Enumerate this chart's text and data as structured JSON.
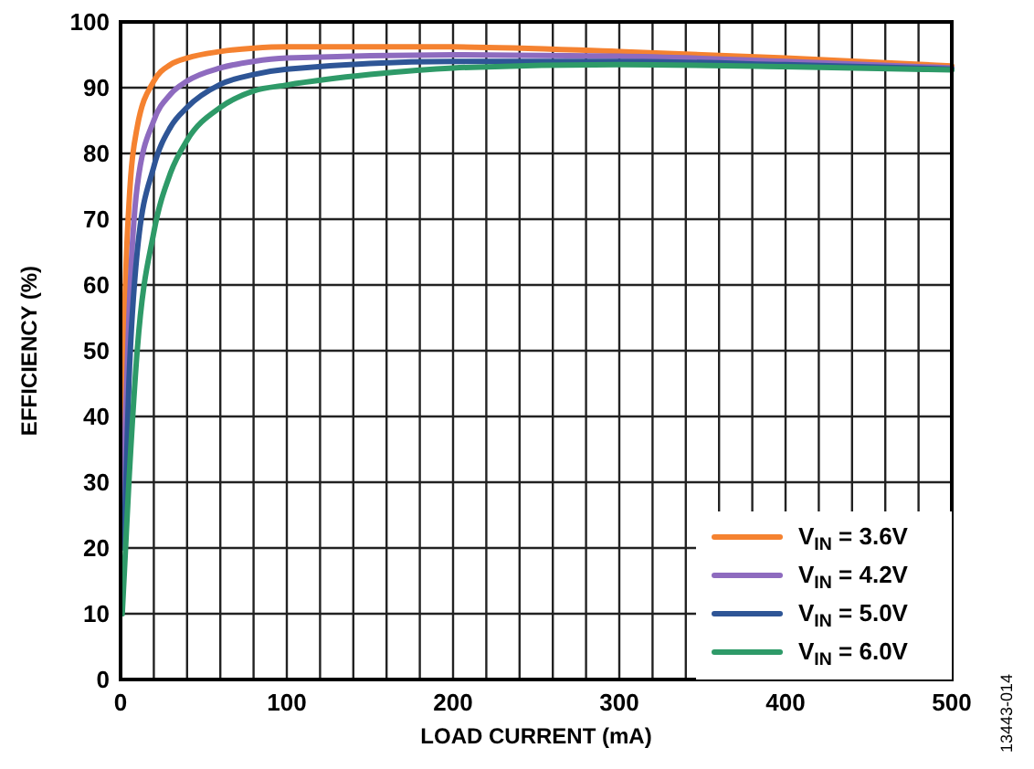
{
  "chart_data": {
    "type": "line",
    "xlabel": "LOAD CURRENT (mA)",
    "ylabel": "EFFICIENCY (%)",
    "xlim": [
      0,
      500
    ],
    "ylim": [
      0,
      100
    ],
    "xticks": [
      0,
      {
        "value": 20,
        "label": null
      },
      {
        "value": 40,
        "label": null
      },
      {
        "value": 60,
        "label": null
      },
      {
        "value": 80,
        "label": null
      },
      100,
      {
        "value": 120,
        "label": null
      },
      {
        "value": 140,
        "label": null
      },
      {
        "value": 160,
        "label": null
      },
      {
        "value": 180,
        "label": null
      },
      200,
      {
        "value": 220,
        "label": null
      },
      {
        "value": 240,
        "label": null
      },
      {
        "value": 260,
        "label": null
      },
      {
        "value": 280,
        "label": null
      },
      300,
      {
        "value": 320,
        "label": null
      },
      {
        "value": 340,
        "label": null
      },
      {
        "value": 360,
        "label": null
      },
      {
        "value": 380,
        "label": null
      },
      400,
      {
        "value": 420,
        "label": null
      },
      {
        "value": 440,
        "label": null
      },
      {
        "value": 460,
        "label": null
      },
      {
        "value": 480,
        "label": null
      },
      500
    ],
    "yticks": [
      0,
      10,
      20,
      30,
      40,
      50,
      60,
      70,
      80,
      90,
      100
    ],
    "grid": true,
    "legend": "bottom right",
    "line_style": "solid",
    "marker": "none",
    "annotations": [
      "13443-014"
    ],
    "series": [
      {
        "name": "V$_{IN}$ = 3.6V",
        "color": "#f58230",
        "x": [
          1,
          2,
          5,
          10,
          20,
          30,
          40,
          60,
          80,
          100,
          200,
          300,
          400,
          500
        ],
        "values": [
          30,
          50,
          72,
          84,
          91,
          93.5,
          94.5,
          95.5,
          96,
          96.2,
          96.2,
          95.5,
          94.5,
          93.3
        ]
      },
      {
        "name": "V$_{IN}$ = 4.2V",
        "color": "#8e6bbf",
        "x": [
          1,
          3,
          5,
          10,
          20,
          30,
          40,
          60,
          80,
          100,
          200,
          300,
          400,
          500
        ],
        "values": [
          20,
          40,
          55,
          75,
          85,
          89,
          91,
          93,
          94,
          94.5,
          95,
          94.8,
          94,
          93
        ]
      },
      {
        "name": "V$_{IN}$ = 5.0V",
        "color": "#2e5596",
        "x": [
          2,
          5,
          10,
          20,
          30,
          40,
          60,
          80,
          100,
          200,
          300,
          400,
          500
        ],
        "values": [
          20,
          45,
          65,
          78,
          84,
          87,
          90.5,
          92,
          92.8,
          94,
          94,
          93.5,
          92.8
        ]
      },
      {
        "name": "V$_{IN}$ = 6.0V",
        "color": "#2e9a68",
        "x": [
          1,
          5,
          10,
          20,
          30,
          40,
          60,
          80,
          100,
          150,
          200,
          300,
          400,
          500
        ],
        "values": [
          10,
          30,
          50,
          68,
          77,
          82,
          87,
          89.5,
          90.4,
          92,
          93,
          93.5,
          93.2,
          92.7
        ]
      }
    ]
  }
}
